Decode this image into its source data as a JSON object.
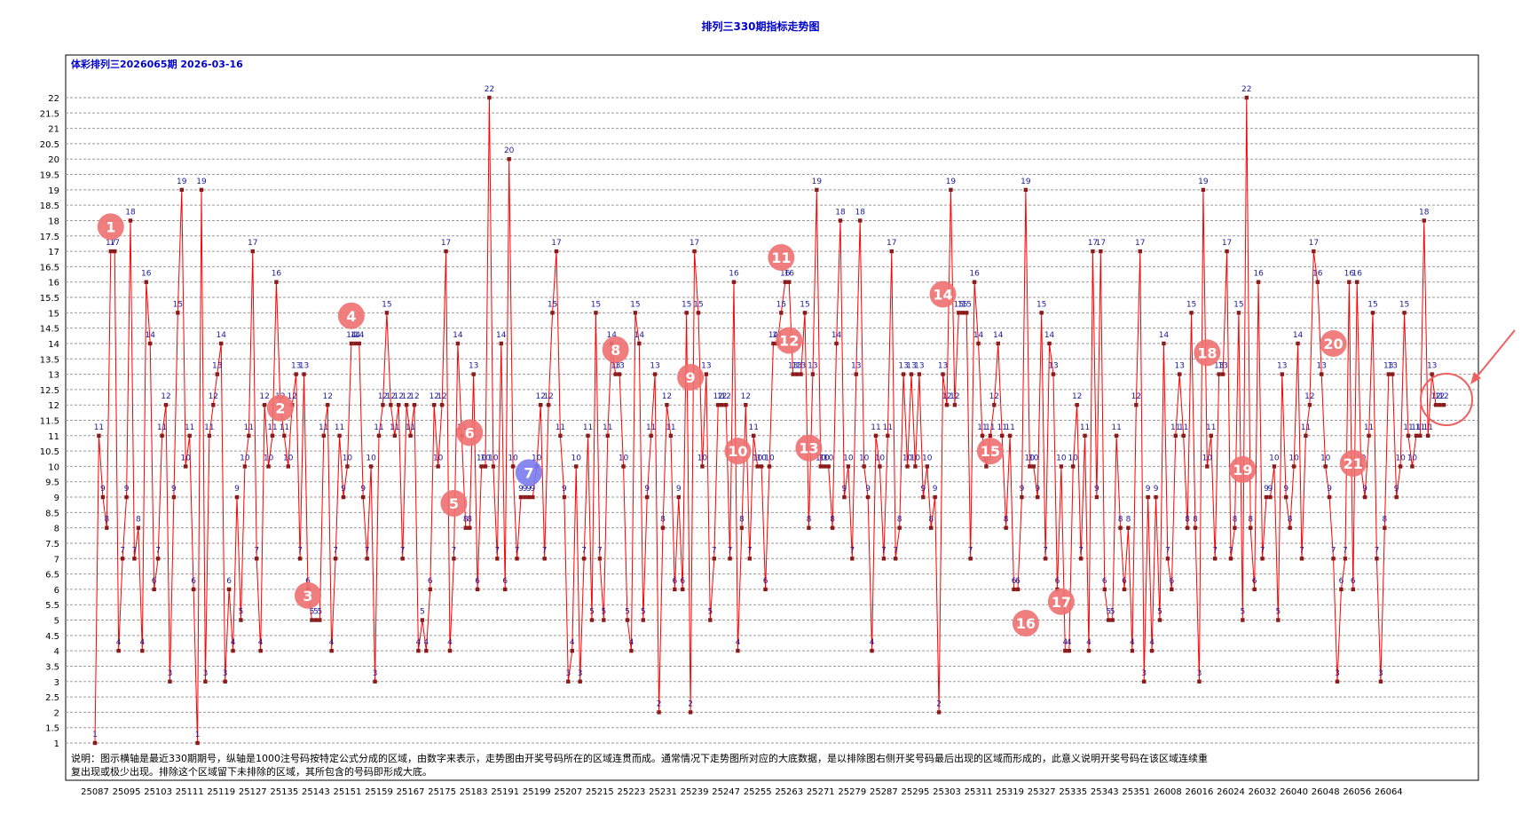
{
  "title": "排列三330期指标走势图",
  "subtitle": "体彩排列三2026065期 2026-03-16",
  "explanation": {
    "line1": "说明：图示横轴是最近330期期号，纵轴是1000注号码按特定公式分成的区域，由数字来表示，走势图由开奖号码所在的区域连贯而成。通常情况下走势图所对应的大底数据，是以排除图右侧开奖号码最后出现的区域而形成的，此意义说明开奖号码在该区域连续重",
    "line2": "复出现或极少出现。排除这个区域留下未排除的区域，其所包含的号码即形成大底。"
  },
  "colors": {
    "line": "#ff0000",
    "point": "#8b1a1a",
    "label": "#1a1a9a",
    "title": "#0000cc",
    "grid": "#9a9a9a",
    "badge": "#f07070",
    "badge_special": "#7b7bf0"
  },
  "chart_data": {
    "type": "line",
    "title": "排列三330期指标走势图",
    "ylim": [
      1,
      22
    ],
    "y_ticks": [
      "1",
      "1.5",
      "2",
      "2.5",
      "3",
      "3.5",
      "4",
      "4.5",
      "5",
      "5.5",
      "6",
      "6.5",
      "7",
      "7.5",
      "8",
      "8.5",
      "9",
      "9.5",
      "10",
      "10.5",
      "11",
      "11.5",
      "12",
      "12.5",
      "13",
      "13.5",
      "14",
      "14.5",
      "15",
      "15.5",
      "16",
      "16.5",
      "17",
      "17.5",
      "18",
      "18.5",
      "19",
      "19.5",
      "20",
      "20.5",
      "21",
      "21.5",
      "22"
    ],
    "x_ticks": [
      "25087",
      "25095",
      "25103",
      "25111",
      "25119",
      "25127",
      "25135",
      "25143",
      "25151",
      "25159",
      "25167",
      "25175",
      "25183",
      "25191",
      "25199",
      "25207",
      "25215",
      "25223",
      "25231",
      "25239",
      "25247",
      "25255",
      "25263",
      "25271",
      "25279",
      "25287",
      "25295",
      "25303",
      "25311",
      "25319",
      "25327",
      "25335",
      "25343",
      "25351",
      "26008",
      "26016",
      "26024",
      "26032",
      "26040",
      "26048",
      "26056",
      "26064"
    ],
    "grid": true,
    "series": [
      {
        "values": [
          1,
          11,
          9,
          8,
          17,
          17,
          4,
          7,
          9,
          18,
          7,
          8,
          4,
          16,
          14,
          6,
          7,
          11,
          12,
          3,
          9,
          15,
          19,
          10,
          11,
          6,
          1,
          19,
          3,
          11,
          12,
          13,
          14,
          3,
          6,
          4,
          9,
          5,
          10,
          11,
          17,
          7,
          4,
          12,
          10,
          11,
          16,
          12,
          11,
          10,
          12,
          13,
          7,
          13,
          6,
          5,
          5,
          5,
          11,
          12,
          4,
          7,
          11,
          9,
          10,
          14,
          14,
          14,
          9,
          7,
          10,
          3,
          11,
          12,
          15,
          12,
          11,
          12,
          7,
          12,
          11,
          12,
          4,
          5,
          4,
          6,
          12,
          10,
          12,
          17,
          4,
          7,
          14,
          11,
          8,
          8,
          13,
          6,
          10,
          10,
          22,
          10,
          7,
          14,
          6,
          20,
          10,
          7,
          9,
          9,
          9,
          9,
          10,
          12,
          7,
          12,
          15,
          17,
          11,
          9,
          3,
          4,
          10,
          3,
          7,
          11,
          5,
          15,
          7,
          5,
          11,
          14,
          13,
          13,
          10,
          5,
          4,
          15,
          14,
          5,
          9,
          11,
          13,
          2,
          8,
          12,
          11,
          6,
          9,
          6,
          15,
          2,
          17,
          15,
          10,
          13,
          5,
          7,
          12,
          12,
          12,
          7,
          16,
          4,
          8,
          12,
          7,
          11,
          10,
          10,
          6,
          10,
          14,
          14,
          15,
          16,
          16,
          13,
          13,
          13,
          15,
          8,
          13,
          19,
          10,
          10,
          10,
          8,
          14,
          18,
          9,
          10,
          7,
          13,
          18,
          10,
          9,
          4,
          11,
          10,
          7,
          11,
          17,
          7,
          8,
          13,
          10,
          13,
          10,
          13,
          9,
          10,
          8,
          9,
          2,
          13,
          12,
          19,
          12,
          15,
          15,
          15,
          7,
          16,
          14,
          11,
          10,
          11,
          12,
          14,
          11,
          8,
          11,
          6,
          6,
          9,
          19,
          10,
          10,
          9,
          15,
          7,
          14,
          13,
          6,
          10,
          4,
          4,
          10,
          12,
          7,
          11,
          4,
          17,
          9,
          17,
          6,
          5,
          5,
          11,
          8,
          6,
          8,
          4,
          12,
          17,
          3,
          9,
          4,
          9,
          5,
          14,
          7,
          6,
          11,
          13,
          11,
          8,
          15,
          8,
          3,
          19,
          10,
          11,
          7,
          13,
          13,
          17,
          7,
          8,
          15,
          5,
          22,
          8,
          6,
          16,
          7,
          9,
          9,
          10,
          5,
          13,
          9,
          8,
          10,
          14,
          7,
          11,
          12,
          17,
          16,
          13,
          10,
          9,
          7,
          3,
          6,
          7,
          16,
          6,
          16,
          10,
          9,
          11,
          15,
          7,
          3,
          8,
          13,
          13,
          9,
          10,
          15,
          11,
          10,
          11,
          11,
          18,
          11,
          13,
          12,
          12,
          12
        ]
      }
    ],
    "annotations": [
      {
        "label": "1",
        "x_index": 4,
        "y": 17.8,
        "special": false
      },
      {
        "label": "2",
        "x_index": 47,
        "y": 11.9,
        "special": false
      },
      {
        "label": "3",
        "x_index": 54,
        "y": 5.8,
        "special": false
      },
      {
        "label": "4",
        "x_index": 65,
        "y": 14.9,
        "special": false
      },
      {
        "label": "5",
        "x_index": 91,
        "y": 8.8,
        "special": false
      },
      {
        "label": "6",
        "x_index": 95,
        "y": 11.1,
        "special": false
      },
      {
        "label": "7",
        "x_index": 110,
        "y": 9.8,
        "special": true
      },
      {
        "label": "8",
        "x_index": 132,
        "y": 13.8,
        "special": false
      },
      {
        "label": "9",
        "x_index": 151,
        "y": 12.9,
        "special": false
      },
      {
        "label": "10",
        "x_index": 163,
        "y": 10.5,
        "special": false
      },
      {
        "label": "11",
        "x_index": 174,
        "y": 16.8,
        "special": false
      },
      {
        "label": "12",
        "x_index": 176,
        "y": 14.1,
        "special": false
      },
      {
        "label": "13",
        "x_index": 181,
        "y": 10.6,
        "special": false
      },
      {
        "label": "14",
        "x_index": 215,
        "y": 15.6,
        "special": false
      },
      {
        "label": "15",
        "x_index": 227,
        "y": 10.5,
        "special": false
      },
      {
        "label": "16",
        "x_index": 236,
        "y": 4.9,
        "special": false
      },
      {
        "label": "17",
        "x_index": 245,
        "y": 5.6,
        "special": false
      },
      {
        "label": "18",
        "x_index": 282,
        "y": 13.7,
        "special": false
      },
      {
        "label": "19",
        "x_index": 291,
        "y": 9.9,
        "special": false
      },
      {
        "label": "20",
        "x_index": 314,
        "y": 14.0,
        "special": false
      },
      {
        "label": "21",
        "x_index": 319,
        "y": 10.1,
        "special": false
      }
    ]
  }
}
